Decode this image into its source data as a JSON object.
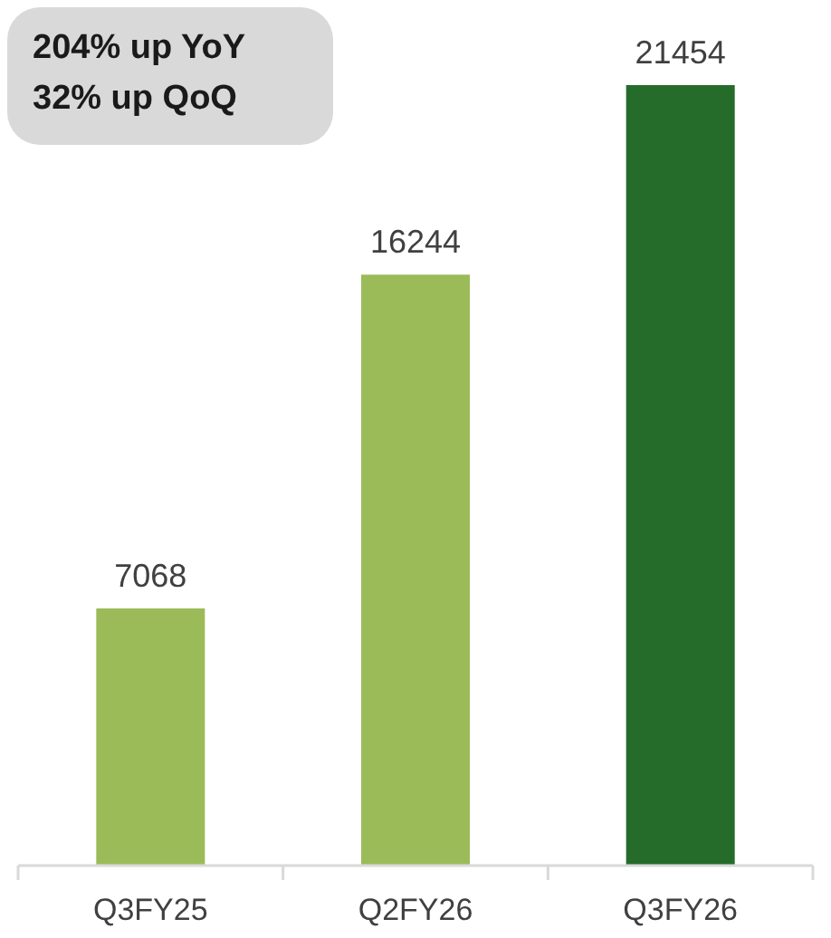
{
  "chart_data": {
    "type": "bar",
    "categories": [
      "Q3FY25",
      "Q2FY26",
      "Q3FY26"
    ],
    "values": [
      7068,
      16244,
      21454
    ],
    "colors": [
      "#9bbb59",
      "#9bbb59",
      "#256b2a"
    ],
    "data_labels": true,
    "annotations": [
      "204% up YoY",
      "32% up QoQ"
    ]
  }
}
